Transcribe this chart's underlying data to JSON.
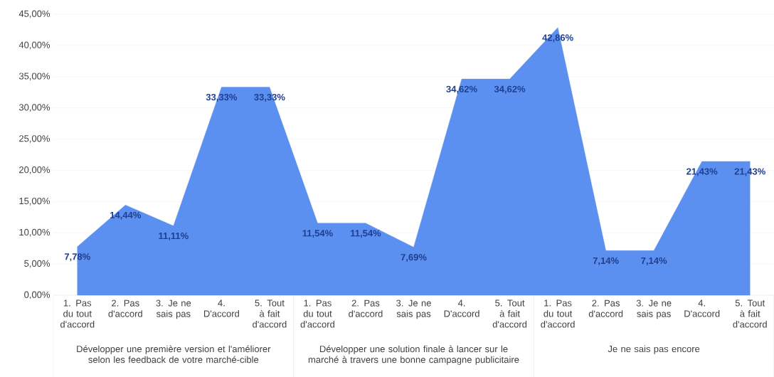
{
  "chart_data": {
    "type": "area",
    "categories": [
      "1. Pas du tout d'accord",
      "2. Pas d'accord",
      "3. Je ne sais pas",
      "4. D'accord",
      "5. Tout à fait d'accord",
      "1. Pas du tout d'accord",
      "2. Pas d'accord",
      "3. Je ne sais pas",
      "4. D'accord",
      "5. Tout à fait d'accord",
      "1. Pas du tout d'accord",
      "2. Pas d'accord",
      "3. Je ne sais pas",
      "4. D'accord",
      "5. Tout à fait d'accord"
    ],
    "values": [
      7.78,
      14.44,
      11.11,
      33.33,
      33.33,
      11.54,
      11.54,
      7.69,
      34.62,
      34.62,
      42.86,
      7.14,
      7.14,
      21.43,
      21.43
    ],
    "value_labels": [
      "7,78%",
      "14,44%",
      "11,11%",
      "33,33%",
      "33,33%",
      "11,54%",
      "11,54%",
      "7,69%",
      "34,62%",
      "34,62%",
      "42,86%",
      "7,14%",
      "7,14%",
      "21,43%",
      "21,43%"
    ],
    "color": "#5b8ff0",
    "ylim": [
      0,
      45
    ],
    "yticks": [
      {
        "value": 0,
        "label": "0,00%"
      },
      {
        "value": 5,
        "label": "5,00%"
      },
      {
        "value": 10,
        "label": "10,00%"
      },
      {
        "value": 15,
        "label": "15,00%"
      },
      {
        "value": 20,
        "label": "20,00%"
      },
      {
        "value": 25,
        "label": "25,00%"
      },
      {
        "value": 30,
        "label": "30,00%"
      },
      {
        "value": 35,
        "label": "35,00%"
      },
      {
        "value": 40,
        "label": "40,00%"
      },
      {
        "value": 45,
        "label": "45,00%"
      }
    ],
    "grid": "y",
    "annotations": [
      "Développer une première version et l'améliorer selon les feedback de votre marché-cible",
      "Développer une solution finale à lancer sur le marché à travers une bonne campagne publicitaire",
      "Je ne sais pas encore"
    ]
  }
}
